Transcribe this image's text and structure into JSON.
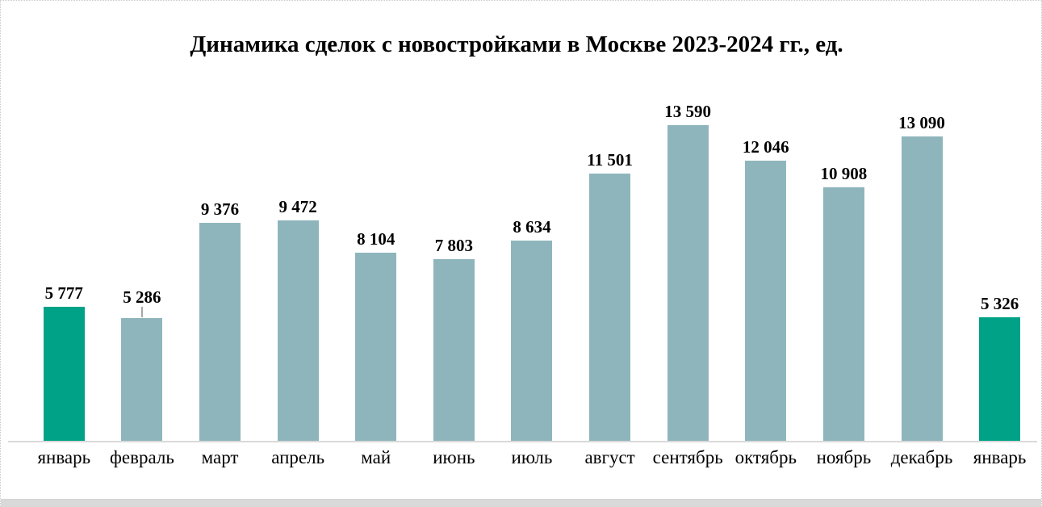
{
  "page": {
    "background": "#ffffff",
    "border_color": "#c9c9c9",
    "bottom_strip_color": "#d9d9d9"
  },
  "chart_data": {
    "type": "bar",
    "title": "Динамика сделок с новостройками в Москве 2023-2024 гг., ед.",
    "categories": [
      "январь",
      "февраль",
      "март",
      "апрель",
      "май",
      "июнь",
      "июль",
      "август",
      "сентябрь",
      "октябрь",
      "ноябрь",
      "декабрь",
      "январь"
    ],
    "values": [
      5777,
      5286,
      9376,
      9472,
      8104,
      7803,
      8634,
      11501,
      13590,
      12046,
      10908,
      13090,
      5326
    ],
    "value_labels": [
      "5 777",
      "5 286",
      "9 376",
      "9 472",
      "8 104",
      "7 803",
      "8 634",
      "11 501",
      "13 590",
      "12 046",
      "10 908",
      "13 090",
      "5 326"
    ],
    "highlight_indices": [
      0,
      12
    ],
    "leader_line_indices": [
      1
    ],
    "colors": {
      "highlight": "#00A287",
      "default": "#8FB5BC",
      "axis_line": "#D9D9D9",
      "leader_line": "#A6A6A6",
      "text": "#000000"
    },
    "ylim": [
      0,
      14000
    ],
    "xlabel": "",
    "ylabel": "",
    "grid": false,
    "legend": false
  }
}
